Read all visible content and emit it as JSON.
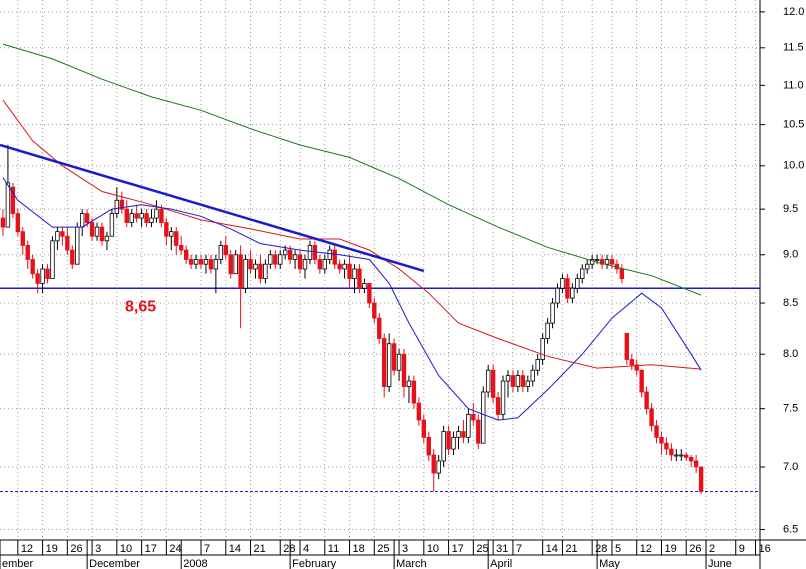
{
  "chart_data": {
    "type": "candlestick",
    "log_y": true,
    "grid": true,
    "y_axis_side": "right",
    "ylim": [
      6.42,
      12.17
    ],
    "yticks": [
      6.5,
      {
        "value": 7.0,
        "label": "7.0"
      },
      7.5,
      {
        "value": 8.0,
        "label": "8.0"
      },
      8.5,
      {
        "value": 9.0,
        "label": "9.0"
      },
      9.5,
      {
        "value": 10.0,
        "label": "10.0"
      },
      10.5,
      {
        "value": 11.0,
        "label": "11.0"
      },
      11.5,
      {
        "value": 12.0,
        "label": "12.0"
      }
    ],
    "xlim": [
      -0.6,
      152.9
    ],
    "xticks": [
      {
        "value": 3,
        "label": "12"
      },
      {
        "value": 8,
        "label": "19"
      },
      {
        "value": 13,
        "label": "26"
      },
      {
        "value": 18,
        "label": "3"
      },
      {
        "value": 23,
        "label": "10"
      },
      {
        "value": 28,
        "label": "17"
      },
      {
        "value": 33,
        "label": "24"
      },
      {
        "value": 40,
        "label": "7"
      },
      {
        "value": 45,
        "label": "14"
      },
      {
        "value": 50,
        "label": "21"
      },
      {
        "value": 56,
        "label": "28"
      },
      {
        "value": 60,
        "label": "4"
      },
      {
        "value": 65,
        "label": "11"
      },
      {
        "value": 70,
        "label": "18"
      },
      {
        "value": 75,
        "label": "25"
      },
      {
        "value": 80,
        "label": "3"
      },
      {
        "value": 85,
        "label": "10"
      },
      {
        "value": 90,
        "label": "17"
      },
      {
        "value": 95,
        "label": "25"
      },
      {
        "value": 99,
        "label": "31"
      },
      {
        "value": 103,
        "label": "7"
      },
      {
        "value": 109,
        "label": "14"
      },
      {
        "value": 113,
        "label": "21"
      },
      {
        "value": 119,
        "label": "28"
      },
      {
        "value": 123,
        "label": "5"
      },
      {
        "value": 128,
        "label": "12"
      },
      {
        "value": 133,
        "label": "19"
      },
      {
        "value": 138,
        "label": "26"
      },
      {
        "value": 142,
        "label": "2"
      },
      {
        "value": 148,
        "label": "9"
      },
      {
        "value": 152,
        "label": "16"
      }
    ],
    "month_ticks": [
      {
        "value": -0.6,
        "label": "ember"
      },
      {
        "value": 17,
        "label": "December"
      },
      {
        "value": 36,
        "label": "2008"
      },
      {
        "value": 58,
        "label": "February"
      },
      {
        "value": 79,
        "label": "March"
      },
      {
        "value": 98,
        "label": "April"
      },
      {
        "value": 120,
        "label": "May"
      },
      {
        "value": 142,
        "label": "June"
      }
    ],
    "up_color": "#ffffff",
    "down_color": "#e8101a",
    "candles": [
      [
        9.4,
        9.5,
        9.2,
        9.3
      ],
      [
        9.3,
        10.25,
        9.3,
        9.8
      ],
      [
        9.75,
        9.8,
        9.4,
        9.45
      ],
      [
        9.45,
        9.5,
        9.2,
        9.25
      ],
      [
        9.25,
        9.3,
        9.0,
        9.1
      ],
      [
        9.1,
        9.15,
        8.85,
        8.95
      ],
      [
        8.95,
        9.0,
        8.75,
        8.8
      ],
      [
        8.8,
        8.85,
        8.6,
        8.7
      ],
      [
        8.7,
        8.9,
        8.6,
        8.85
      ],
      [
        8.85,
        8.9,
        8.7,
        8.75
      ],
      [
        8.75,
        9.2,
        8.75,
        9.15
      ],
      [
        9.15,
        9.3,
        9.05,
        9.25
      ],
      [
        9.25,
        9.3,
        9.1,
        9.2
      ],
      [
        9.2,
        9.3,
        9.0,
        9.05
      ],
      [
        9.05,
        9.1,
        8.85,
        8.9
      ],
      [
        8.9,
        9.35,
        8.9,
        9.3
      ],
      [
        9.3,
        9.5,
        9.2,
        9.45
      ],
      [
        9.45,
        9.5,
        9.3,
        9.35
      ],
      [
        9.35,
        9.4,
        9.15,
        9.2
      ],
      [
        9.2,
        9.35,
        9.15,
        9.3
      ],
      [
        9.3,
        9.35,
        9.1,
        9.15
      ],
      [
        9.15,
        9.25,
        9.05,
        9.2
      ],
      [
        9.2,
        9.5,
        9.2,
        9.45
      ],
      [
        9.45,
        9.75,
        9.4,
        9.6
      ],
      [
        9.6,
        9.7,
        9.45,
        9.5
      ],
      [
        9.5,
        9.6,
        9.3,
        9.35
      ],
      [
        9.35,
        9.5,
        9.3,
        9.45
      ],
      [
        9.45,
        9.55,
        9.35,
        9.4
      ],
      [
        9.4,
        9.5,
        9.3,
        9.45
      ],
      [
        9.45,
        9.5,
        9.3,
        9.35
      ],
      [
        9.35,
        9.5,
        9.3,
        9.4
      ],
      [
        9.4,
        9.6,
        9.35,
        9.5
      ],
      [
        9.5,
        9.55,
        9.3,
        9.35
      ],
      [
        9.35,
        9.4,
        9.1,
        9.2
      ],
      [
        9.2,
        9.3,
        9.05,
        9.25
      ],
      [
        9.25,
        9.3,
        9.0,
        9.1
      ],
      [
        9.1,
        9.2,
        9.0,
        9.05
      ],
      [
        9.05,
        9.1,
        8.9,
        8.95
      ],
      [
        8.95,
        9.0,
        8.85,
        8.9
      ],
      [
        8.9,
        9.0,
        8.85,
        8.95
      ],
      [
        8.95,
        9.0,
        8.85,
        8.9
      ],
      [
        8.9,
        9.0,
        8.8,
        8.95
      ],
      [
        8.95,
        9.0,
        8.8,
        8.85
      ],
      [
        8.85,
        9.0,
        8.6,
        8.95
      ],
      [
        8.95,
        9.15,
        8.9,
        9.1
      ],
      [
        9.1,
        9.2,
        8.95,
        9.0
      ],
      [
        9.0,
        9.05,
        8.75,
        8.8
      ],
      [
        8.8,
        9.05,
        8.8,
        9.0
      ],
      [
        9.0,
        9.1,
        8.25,
        8.65
      ],
      [
        8.65,
        9.0,
        8.6,
        8.95
      ],
      [
        8.95,
        9.05,
        8.8,
        8.85
      ],
      [
        8.85,
        8.95,
        8.75,
        8.9
      ],
      [
        8.9,
        9.0,
        8.7,
        8.75
      ],
      [
        8.75,
        8.95,
        8.7,
        8.9
      ],
      [
        8.9,
        9.05,
        8.85,
        9.0
      ],
      [
        9.0,
        9.05,
        8.85,
        8.9
      ],
      [
        8.9,
        9.05,
        8.85,
        9.0
      ],
      [
        9.0,
        9.1,
        8.95,
        9.05
      ],
      [
        9.05,
        9.1,
        8.9,
        8.95
      ],
      [
        8.95,
        9.05,
        8.85,
        9.0
      ],
      [
        9.0,
        9.05,
        8.8,
        8.85
      ],
      [
        8.85,
        9.0,
        8.75,
        8.95
      ],
      [
        8.95,
        9.15,
        8.9,
        9.1
      ],
      [
        9.1,
        9.15,
        8.9,
        8.95
      ],
      [
        8.95,
        9.0,
        8.8,
        8.85
      ],
      [
        8.85,
        9.0,
        8.8,
        8.95
      ],
      [
        8.95,
        9.1,
        8.9,
        9.05
      ],
      [
        9.05,
        9.1,
        8.85,
        8.9
      ],
      [
        8.9,
        8.95,
        8.8,
        8.85
      ],
      [
        8.85,
        8.95,
        8.75,
        8.9
      ],
      [
        8.9,
        9.0,
        8.65,
        8.75
      ],
      [
        8.75,
        8.9,
        8.6,
        8.85
      ],
      [
        8.85,
        8.9,
        8.6,
        8.65
      ],
      [
        8.65,
        8.75,
        8.6,
        8.7
      ],
      [
        8.7,
        8.7,
        8.45,
        8.5
      ],
      [
        8.5,
        8.55,
        8.3,
        8.35
      ],
      [
        8.35,
        8.4,
        8.1,
        8.15
      ],
      [
        8.15,
        8.2,
        7.6,
        7.7
      ],
      [
        7.7,
        8.2,
        7.65,
        8.1
      ],
      [
        8.1,
        8.15,
        7.8,
        7.85
      ],
      [
        7.85,
        8.05,
        7.75,
        8.0
      ],
      [
        8.0,
        8.05,
        7.6,
        7.7
      ],
      [
        7.7,
        7.8,
        7.55,
        7.75
      ],
      [
        7.75,
        7.8,
        7.5,
        7.55
      ],
      [
        7.55,
        7.6,
        7.35,
        7.4
      ],
      [
        7.4,
        7.45,
        7.2,
        7.25
      ],
      [
        7.25,
        7.3,
        7.05,
        7.1
      ],
      [
        7.1,
        7.15,
        6.8,
        6.95
      ],
      [
        6.95,
        7.1,
        6.9,
        7.05
      ],
      [
        7.05,
        7.35,
        7.0,
        7.3
      ],
      [
        7.3,
        7.35,
        7.1,
        7.15
      ],
      [
        7.15,
        7.3,
        7.1,
        7.25
      ],
      [
        7.25,
        7.35,
        7.15,
        7.3
      ],
      [
        7.3,
        7.4,
        7.2,
        7.25
      ],
      [
        7.25,
        7.5,
        7.2,
        7.45
      ],
      [
        7.45,
        7.55,
        7.35,
        7.4
      ],
      [
        7.4,
        7.45,
        7.15,
        7.2
      ],
      [
        7.2,
        7.7,
        7.2,
        7.65
      ],
      [
        7.65,
        7.9,
        7.6,
        7.85
      ],
      [
        7.85,
        7.9,
        7.55,
        7.6
      ],
      [
        7.6,
        7.65,
        7.4,
        7.45
      ],
      [
        7.45,
        7.8,
        7.4,
        7.75
      ],
      [
        7.75,
        7.85,
        7.6,
        7.8
      ],
      [
        7.8,
        7.85,
        7.65,
        7.7
      ],
      [
        7.7,
        7.85,
        7.65,
        7.8
      ],
      [
        7.8,
        7.85,
        7.65,
        7.7
      ],
      [
        7.7,
        7.8,
        7.65,
        7.75
      ],
      [
        7.75,
        7.9,
        7.7,
        7.85
      ],
      [
        7.85,
        8.0,
        7.8,
        7.95
      ],
      [
        7.95,
        8.2,
        7.9,
        8.15
      ],
      [
        8.15,
        8.35,
        8.1,
        8.3
      ],
      [
        8.3,
        8.55,
        8.25,
        8.5
      ],
      [
        8.5,
        8.7,
        8.45,
        8.65
      ],
      [
        8.65,
        8.8,
        8.6,
        8.75
      ],
      [
        8.75,
        8.8,
        8.5,
        8.55
      ],
      [
        8.55,
        8.7,
        8.5,
        8.65
      ],
      [
        8.65,
        8.8,
        8.6,
        8.75
      ],
      [
        8.75,
        8.9,
        8.7,
        8.85
      ],
      [
        8.85,
        8.95,
        8.8,
        8.9
      ],
      [
        8.9,
        9.0,
        8.85,
        8.95
      ],
      [
        8.95,
        9.0,
        8.9,
        8.95
      ],
      [
        8.95,
        9.0,
        8.85,
        8.9
      ],
      [
        8.9,
        9.0,
        8.85,
        8.95
      ],
      [
        8.95,
        9.0,
        8.85,
        8.9
      ],
      [
        8.9,
        8.95,
        8.8,
        8.85
      ],
      [
        8.85,
        8.9,
        8.7,
        8.75
      ],
      [
        8.2,
        8.2,
        7.9,
        7.95
      ],
      [
        7.95,
        8.0,
        7.85,
        7.9
      ],
      [
        7.9,
        7.95,
        7.8,
        7.85
      ],
      [
        7.85,
        7.85,
        7.6,
        7.65
      ],
      [
        7.65,
        7.7,
        7.45,
        7.5
      ],
      [
        7.5,
        7.55,
        7.3,
        7.35
      ],
      [
        7.35,
        7.4,
        7.2,
        7.25
      ],
      [
        7.25,
        7.3,
        7.1,
        7.2
      ],
      [
        7.2,
        7.25,
        7.1,
        7.15
      ],
      [
        7.15,
        7.2,
        7.05,
        7.1
      ],
      [
        7.1,
        7.15,
        7.05,
        7.1
      ],
      [
        7.1,
        7.15,
        7.05,
        7.1
      ],
      [
        7.1,
        7.12,
        7.05,
        7.08
      ],
      [
        7.08,
        7.1,
        7.0,
        7.05
      ],
      [
        7.05,
        7.1,
        6.95,
        7.0
      ],
      [
        7.0,
        7.0,
        6.78,
        6.8
      ]
    ],
    "lines": [
      {
        "color": "#1a7a1a",
        "width": 1,
        "x": [
          0,
          10,
          20,
          30,
          40,
          50,
          60,
          70,
          80,
          90,
          100,
          110,
          120,
          131,
          141
        ],
        "values": [
          11.55,
          11.35,
          11.08,
          10.85,
          10.68,
          10.45,
          10.25,
          10.1,
          9.85,
          9.55,
          9.3,
          9.08,
          8.92,
          8.78,
          8.58
        ]
      },
      {
        "color": "#d81818",
        "width": 1,
        "x": [
          0,
          6,
          12,
          20,
          30,
          40,
          50,
          60,
          68,
          74,
          80,
          86,
          92,
          100,
          110,
          120,
          131,
          141
        ],
        "values": [
          10.81,
          10.3,
          10.0,
          9.7,
          9.55,
          9.38,
          9.28,
          9.17,
          9.17,
          9.05,
          8.85,
          8.6,
          8.3,
          8.15,
          7.98,
          7.87,
          7.9,
          7.86
        ]
      },
      {
        "color": "#1a1ad0",
        "width": 1,
        "x": [
          0,
          3,
          10,
          16,
          22,
          28,
          34,
          40,
          46,
          52,
          60,
          68,
          74,
          78,
          82,
          88,
          94,
          100,
          104,
          110,
          117,
          123,
          129,
          133,
          139,
          141
        ],
        "values": [
          9.86,
          9.6,
          9.3,
          9.3,
          9.5,
          9.55,
          9.5,
          9.42,
          9.28,
          9.12,
          9.05,
          9.0,
          8.95,
          8.7,
          8.3,
          7.8,
          7.5,
          7.4,
          7.42,
          7.67,
          8.0,
          8.35,
          8.6,
          8.45,
          8.0,
          7.85
        ]
      },
      {
        "color": "#1a1ad0",
        "width": 2.5,
        "x": [
          -0.6,
          85
        ],
        "values": [
          10.25,
          8.83
        ]
      }
    ],
    "hline": {
      "value": 8.65,
      "label": "8,65",
      "color": "#1a1ad0"
    },
    "support_line": {
      "value": 6.8,
      "color": "#1a1ad0"
    }
  }
}
